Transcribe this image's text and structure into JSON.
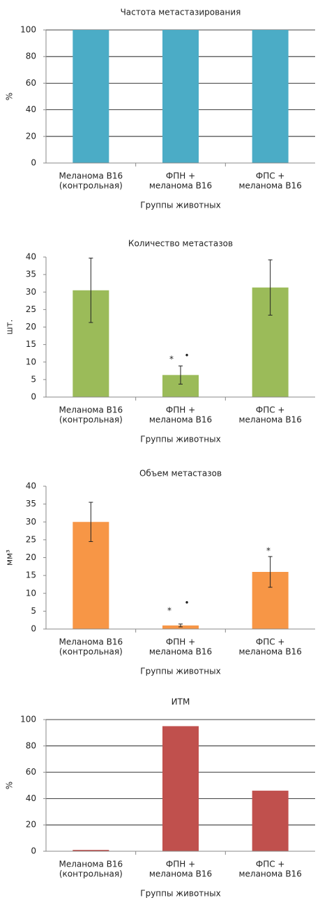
{
  "chart_data": [
    {
      "type": "bar",
      "title": "Частота метастазирования",
      "ylabel": "%",
      "xlabel": "Группы животных",
      "categories": [
        [
          "Меланома В16",
          "(контрольная)"
        ],
        [
          "ФПН +",
          "меланома В16"
        ],
        [
          "ФПС +",
          "меланома В16"
        ]
      ],
      "values": [
        100,
        100,
        100
      ],
      "color": "#4bacc6",
      "ylim": [
        0,
        100
      ],
      "yticks": [
        0,
        20,
        40,
        60,
        80,
        100
      ],
      "grid": true
    },
    {
      "type": "bar",
      "title": "Количество метастазов",
      "ylabel": "шт.",
      "xlabel": "Группы животных",
      "categories": [
        [
          "Меланома В16",
          "(контрольная)"
        ],
        [
          "ФПН +",
          "меланома В16"
        ],
        [
          "ФПС +",
          "меланома В16"
        ]
      ],
      "values": [
        30.5,
        6.3,
        31.3
      ],
      "errors": [
        9.2,
        2.6,
        7.9
      ],
      "color": "#9bbb59",
      "ylim": [
        0,
        40
      ],
      "yticks": [
        0,
        5,
        10,
        15,
        20,
        25,
        30,
        35,
        40
      ],
      "grid": false,
      "annotations": [
        "*",
        "•"
      ]
    },
    {
      "type": "bar",
      "title": "Объем метастазов",
      "ylabel": "мм³",
      "xlabel": "Группы животных",
      "categories": [
        [
          "Меланома В16",
          "(контрольная)"
        ],
        [
          "ФПН +",
          "меланома В16"
        ],
        [
          "ФПС +",
          "меланома В16"
        ]
      ],
      "values": [
        30,
        1,
        16
      ],
      "errors": [
        5.5,
        0.4,
        4.3
      ],
      "color": "#f79646",
      "ylim": [
        0,
        40
      ],
      "yticks": [
        0,
        5,
        10,
        15,
        20,
        25,
        30,
        35,
        40
      ],
      "grid": false,
      "annotations": [
        "*",
        "•",
        "*"
      ]
    },
    {
      "type": "bar",
      "title": "ИТМ",
      "ylabel": "%",
      "xlabel": "Группы животных",
      "categories": [
        [
          "Меланома В16",
          "(контрольная)"
        ],
        [
          "ФПН +",
          "меланома В16"
        ],
        [
          "ФПС +",
          "меланома В16"
        ]
      ],
      "values": [
        1,
        95,
        46
      ],
      "color": "#c0504d",
      "ylim": [
        0,
        100
      ],
      "yticks": [
        0,
        20,
        40,
        60,
        80,
        100
      ],
      "grid": true
    }
  ]
}
